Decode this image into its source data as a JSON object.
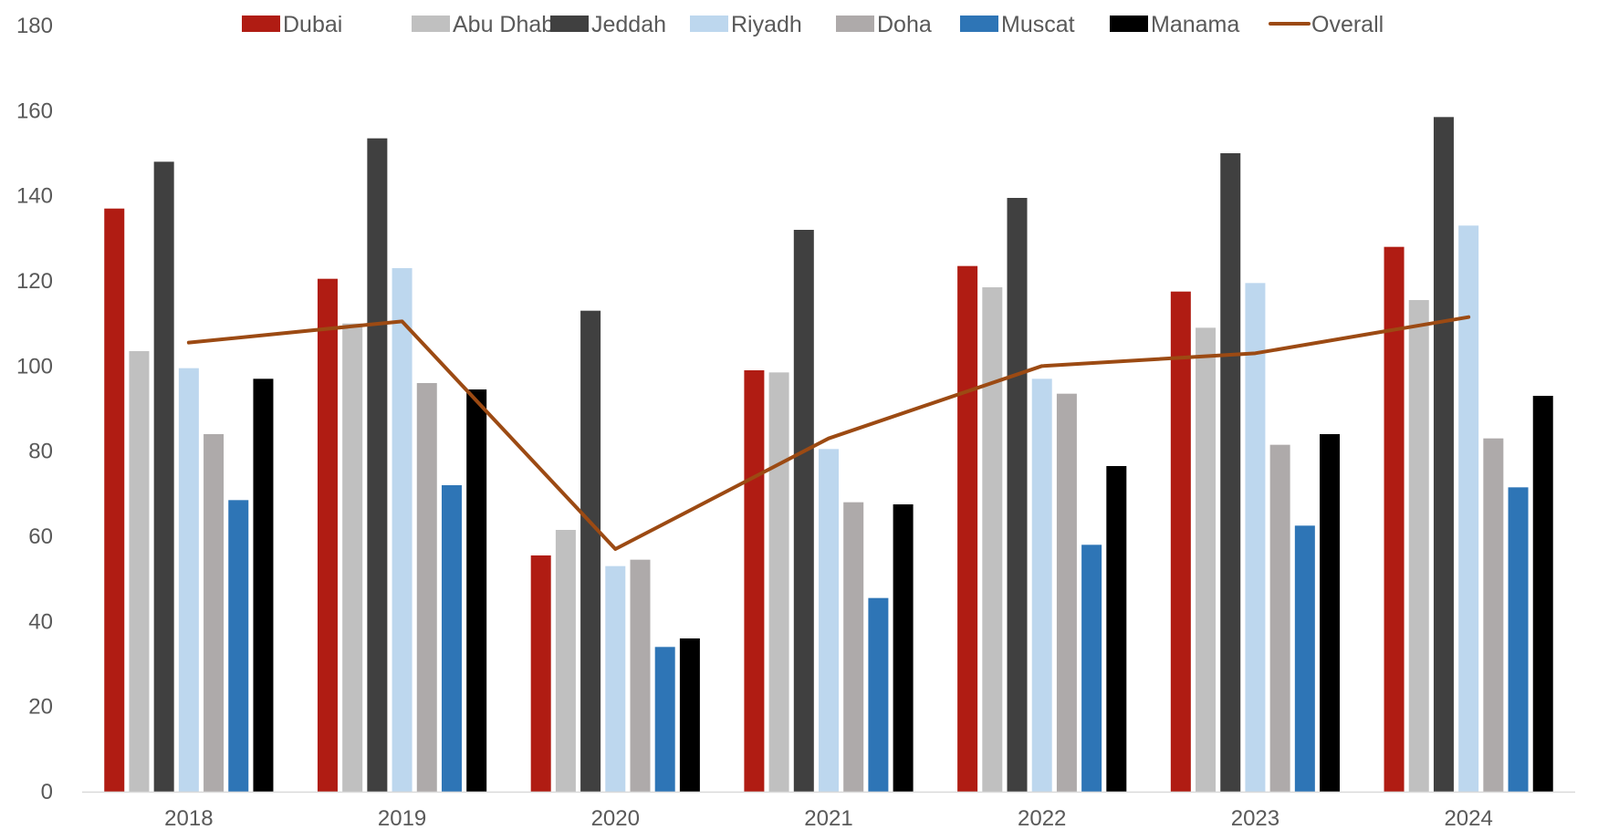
{
  "chart_data": {
    "type": "bar",
    "title": "",
    "xlabel": "",
    "ylabel": "",
    "ylim": [
      0,
      180
    ],
    "yticks": [
      0,
      20,
      40,
      60,
      80,
      100,
      120,
      140,
      160,
      180
    ],
    "categories": [
      "2018",
      "2019",
      "2020",
      "2021",
      "2022",
      "2023",
      "2024"
    ],
    "legend_position": "top",
    "grid": false,
    "series": [
      {
        "name": "Dubai",
        "type": "bar",
        "color": "#B01C13",
        "values": [
          137,
          120.5,
          55.5,
          99,
          123.5,
          117.5,
          128
        ]
      },
      {
        "name": "Abu Dhabi",
        "type": "bar",
        "color": "#C0C0C0",
        "values": [
          103.5,
          110,
          61.5,
          98.5,
          118.5,
          109,
          115.5
        ]
      },
      {
        "name": "Jeddah",
        "type": "bar",
        "color": "#404040",
        "values": [
          148,
          153.5,
          113,
          132,
          139.5,
          150,
          158.5
        ]
      },
      {
        "name": "Riyadh",
        "type": "bar",
        "color": "#BDD7EE",
        "values": [
          99.5,
          123,
          53,
          80.5,
          97,
          119.5,
          133
        ]
      },
      {
        "name": "Doha",
        "type": "bar",
        "color": "#AEAAAA",
        "values": [
          84,
          96,
          54.5,
          68,
          93.5,
          81.5,
          83
        ]
      },
      {
        "name": "Muscat",
        "type": "bar",
        "color": "#2E75B6",
        "values": [
          68.5,
          72,
          34,
          45.5,
          58,
          62.5,
          71.5
        ]
      },
      {
        "name": "Manama",
        "type": "bar",
        "color": "#000000",
        "values": [
          97,
          94.5,
          36,
          67.5,
          76.5,
          84,
          93
        ]
      },
      {
        "name": "Overall",
        "type": "line",
        "color": "#9C4A13",
        "values": [
          105.5,
          110.5,
          57,
          83,
          100,
          103,
          111.5
        ]
      }
    ]
  }
}
